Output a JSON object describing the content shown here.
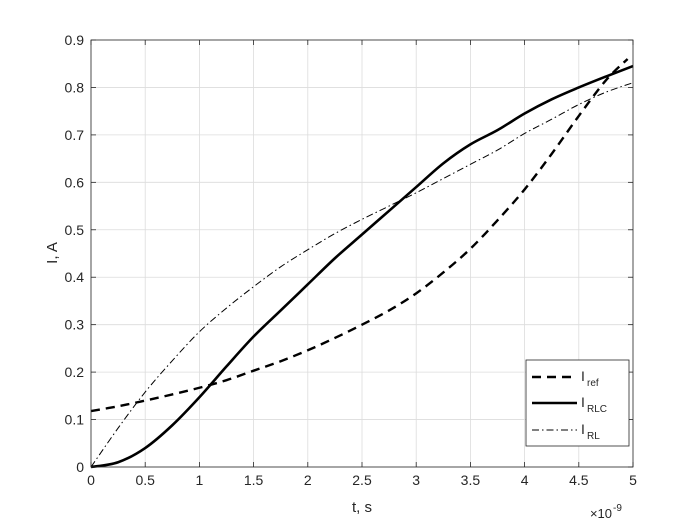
{
  "chart_data": {
    "type": "line",
    "xlabel": "t, s",
    "ylabel": "I, A",
    "x_exponent_label": "×10",
    "x_exponent_power": "-9",
    "xlim": [
      0,
      5
    ],
    "ylim": [
      0,
      0.9
    ],
    "x_ticks": [
      0,
      0.5,
      1,
      1.5,
      2,
      2.5,
      3,
      3.5,
      4,
      4.5,
      5
    ],
    "x_tick_labels": [
      "0",
      "0.5",
      "1",
      "1.5",
      "2",
      "2.5",
      "3",
      "3.5",
      "4",
      "4.5",
      "5"
    ],
    "y_ticks": [
      0,
      0.1,
      0.2,
      0.3,
      0.4,
      0.5,
      0.6,
      0.7,
      0.8,
      0.9
    ],
    "y_tick_labels": [
      "0",
      "0.1",
      "0.2",
      "0.3",
      "0.4",
      "0.5",
      "0.6",
      "0.7",
      "0.8",
      "0.9"
    ],
    "grid": true,
    "legend_position": "bottom-right",
    "x": [
      0,
      0.25,
      0.5,
      0.75,
      1,
      1.25,
      1.5,
      1.75,
      2,
      2.25,
      2.5,
      2.75,
      3,
      3.25,
      3.5,
      3.75,
      4,
      4.25,
      4.5,
      4.75,
      4.95
    ],
    "series": [
      {
        "label_main": "I",
        "label_sub": "ref",
        "style": "dashed",
        "x": [
          0,
          0.25,
          0.5,
          0.75,
          1,
          1.25,
          1.5,
          1.75,
          2,
          2.25,
          2.5,
          2.75,
          3,
          3.25,
          3.5,
          3.75,
          4,
          4.25,
          4.5,
          4.75,
          4.95
        ],
        "values": [
          0.118,
          0.128,
          0.14,
          0.153,
          0.167,
          0.183,
          0.203,
          0.223,
          0.246,
          0.272,
          0.3,
          0.33,
          0.366,
          0.41,
          0.46,
          0.52,
          0.585,
          0.66,
          0.74,
          0.815,
          0.86
        ]
      },
      {
        "label_main": "I",
        "label_sub": "RLC",
        "style": "solid",
        "x": [
          0,
          0.25,
          0.5,
          0.75,
          1,
          1.25,
          1.5,
          1.75,
          2,
          2.25,
          2.5,
          2.75,
          3,
          3.25,
          3.5,
          3.75,
          4,
          4.25,
          4.5,
          4.75,
          5
        ],
        "values": [
          0,
          0.01,
          0.04,
          0.088,
          0.147,
          0.212,
          0.275,
          0.33,
          0.385,
          0.44,
          0.49,
          0.54,
          0.59,
          0.64,
          0.68,
          0.71,
          0.745,
          0.775,
          0.8,
          0.823,
          0.845
        ]
      },
      {
        "label_main": "I",
        "label_sub": "RL",
        "style": "dashdot",
        "x": [
          0,
          0.25,
          0.5,
          0.75,
          1,
          1.25,
          1.5,
          1.75,
          2,
          2.25,
          2.5,
          2.75,
          3,
          3.25,
          3.5,
          3.75,
          4,
          4.25,
          4.5,
          4.75,
          5
        ],
        "values": [
          0,
          0.082,
          0.158,
          0.224,
          0.285,
          0.335,
          0.38,
          0.422,
          0.458,
          0.492,
          0.522,
          0.55,
          0.578,
          0.608,
          0.638,
          0.668,
          0.703,
          0.733,
          0.764,
          0.79,
          0.81
        ]
      }
    ]
  }
}
